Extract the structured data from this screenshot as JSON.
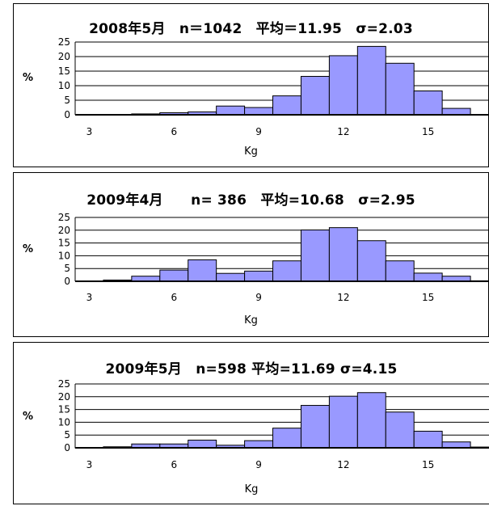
{
  "chart_data": [
    {
      "type": "bar",
      "title": "2008年5月　n＝1042　平均＝11.95　σ=2.03",
      "ylabel": "%",
      "xlabel": "Kg",
      "ylim": [
        0,
        25
      ],
      "yticks": [
        "0",
        "5",
        "10",
        "15",
        "20",
        "25"
      ],
      "xticks": [
        "3",
        "6",
        "9",
        "12",
        "15"
      ],
      "bins": [
        "2.5",
        "3.5",
        "4.5",
        "5.5",
        "6.5",
        "7.5",
        "8.5",
        "9.5",
        "10.5",
        "11.5",
        "12.5",
        "13.5",
        "14.5",
        "15.5",
        "16.5"
      ],
      "values": [
        0,
        0.1,
        0.3,
        0.7,
        1.0,
        3.0,
        2.5,
        6.5,
        13.2,
        20.3,
        23.5,
        17.7,
        8.2,
        2.2,
        0
      ],
      "bar_color": "#9999ff",
      "grid": true
    },
    {
      "type": "bar",
      "title": "2009年4月　　n= 386　平均=10.68　σ=2.95",
      "ylabel": "%",
      "xlabel": "Kg",
      "ylim": [
        0,
        25
      ],
      "yticks": [
        "0",
        "5",
        "10",
        "15",
        "20",
        "25"
      ],
      "xticks": [
        "3",
        "6",
        "9",
        "12",
        "15"
      ],
      "bins": [
        "2.5",
        "3.5",
        "4.5",
        "5.5",
        "6.5",
        "7.5",
        "8.5",
        "9.5",
        "10.5",
        "11.5",
        "12.5",
        "13.5",
        "14.5",
        "15.5",
        "16.5"
      ],
      "values": [
        0,
        0.5,
        2.0,
        4.4,
        8.4,
        3.1,
        4.0,
        8.0,
        20.1,
        21.0,
        15.9,
        8.0,
        3.2,
        2.0,
        0.2
      ],
      "bar_color": "#9999ff",
      "grid": true
    },
    {
      "type": "bar",
      "title": "2009年5月　n=598 平均=11.69 σ=4.15",
      "ylabel": "%",
      "xlabel": "Kg",
      "ylim": [
        0,
        25
      ],
      "yticks": [
        "0",
        "5",
        "10",
        "15",
        "20",
        "25"
      ],
      "xticks": [
        "3",
        "6",
        "9",
        "12",
        "15"
      ],
      "bins": [
        "2.5",
        "3.5",
        "4.5",
        "5.5",
        "6.5",
        "7.5",
        "8.5",
        "9.5",
        "10.5",
        "11.5",
        "12.5",
        "13.5",
        "14.5",
        "15.5",
        "16.5"
      ],
      "values": [
        0.1,
        0.4,
        1.5,
        1.5,
        3.0,
        1.0,
        2.8,
        7.7,
        16.6,
        20.2,
        21.6,
        14.0,
        6.5,
        2.3,
        0.3
      ],
      "bar_color": "#9999ff",
      "grid": true
    }
  ]
}
